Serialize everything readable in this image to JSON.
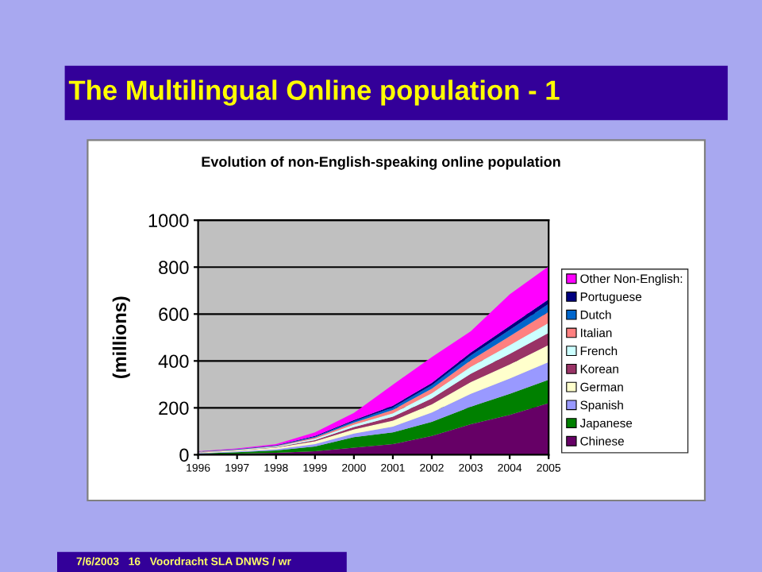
{
  "chart_data": {
    "type": "area",
    "stacked": true,
    "title": "The Multilingual Online population - 1",
    "subtitle": "Evolution of non-English-speaking online population",
    "ylabel": "(millions)",
    "annotations": [
      "7/6/2003   16   Voordracht SLA DNWS / wr"
    ],
    "x": [
      1996,
      1997,
      1998,
      1999,
      2000,
      2001,
      2002,
      2003,
      2004,
      2005
    ],
    "xlim": [
      1996,
      2005
    ],
    "xticks": [
      1996,
      1997,
      1998,
      1999,
      2000,
      2001,
      2002,
      2003,
      2004,
      2005
    ],
    "ylim": [
      0,
      1000
    ],
    "yticks": [
      0,
      200,
      400,
      600,
      800,
      1000
    ],
    "grid": "y",
    "legend": "right",
    "series": [
      {
        "name": "Chinese",
        "color": "#660066",
        "values": [
          2,
          5,
          8,
          15,
          30,
          45,
          80,
          130,
          170,
          220
        ]
      },
      {
        "name": "Japanese",
        "color": "#008000",
        "values": [
          3,
          6,
          10,
          20,
          45,
          50,
          60,
          75,
          90,
          100
        ]
      },
      {
        "name": "Spanish",
        "color": "#9999ff",
        "values": [
          2,
          3,
          5,
          10,
          15,
          25,
          40,
          55,
          65,
          75
        ]
      },
      {
        "name": "German",
        "color": "#ffffcc",
        "values": [
          2,
          4,
          7,
          12,
          18,
          25,
          35,
          50,
          60,
          73
        ]
      },
      {
        "name": "Korean",
        "color": "#993366",
        "values": [
          1,
          1,
          2,
          5,
          10,
          17,
          25,
          35,
          45,
          52
        ]
      },
      {
        "name": "French",
        "color": "#ccffff",
        "values": [
          1,
          2,
          3,
          6,
          10,
          15,
          22,
          30,
          37,
          42
        ]
      },
      {
        "name": "Italian",
        "color": "#ff8080",
        "values": [
          1,
          1,
          2,
          5,
          9,
          14,
          20,
          28,
          38,
          47
        ]
      },
      {
        "name": "Dutch",
        "color": "#0066cc",
        "values": [
          1,
          1,
          2,
          4,
          6,
          10,
          14,
          20,
          27,
          34
        ]
      },
      {
        "name": "Portuguese",
        "color": "#000080",
        "values": [
          1,
          1,
          1,
          3,
          5,
          8,
          10,
          13,
          17,
          20
        ]
      },
      {
        "name": "Other Non-English:",
        "color": "#ff00ff",
        "values": [
          1,
          3,
          5,
          15,
          30,
          90,
          110,
          90,
          135,
          140
        ]
      }
    ]
  }
}
